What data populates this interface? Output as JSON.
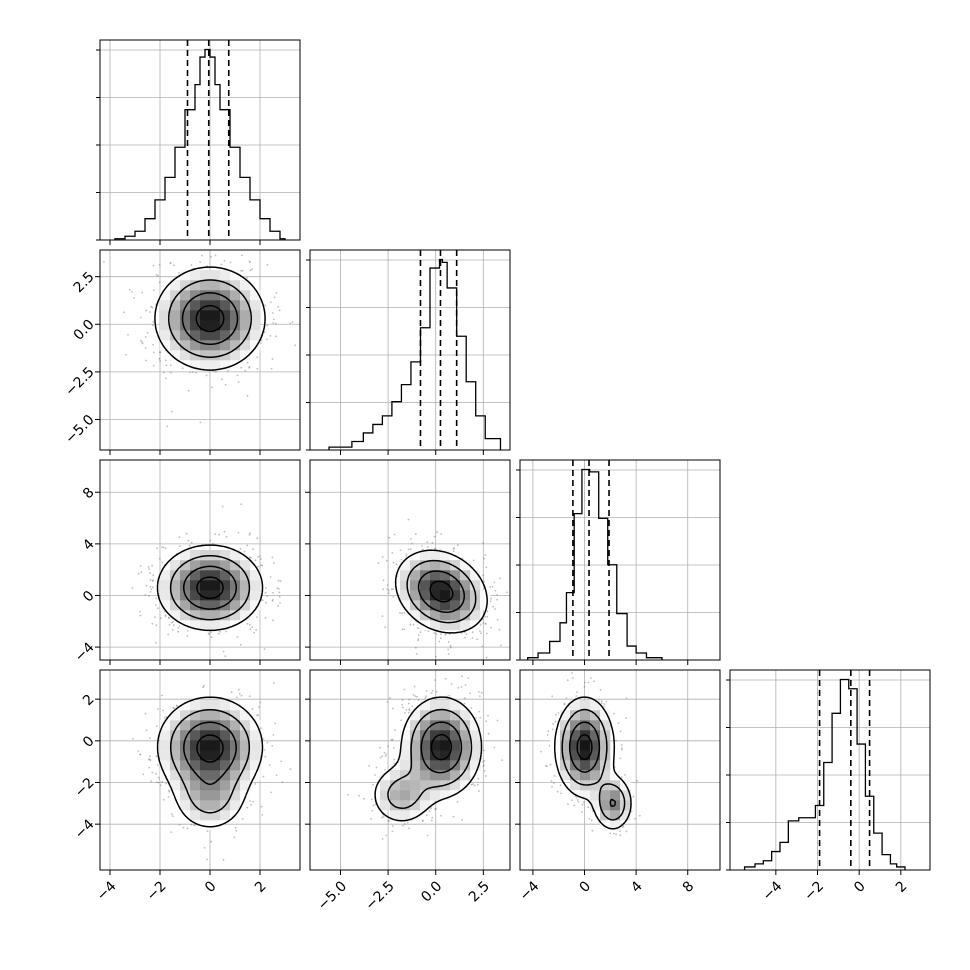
{
  "chart_data": {
    "type": "corner",
    "n_params": 4,
    "grid": true,
    "quantiles": [
      0.16,
      0.5,
      0.84
    ],
    "contour_levels_sigma": [
      0.5,
      1.0,
      1.5,
      2.0
    ],
    "params": [
      {
        "range": [
          -4.4,
          3.6
        ],
        "ticks": [
          -4,
          -2,
          0,
          2
        ],
        "tick_labels": [
          "−4",
          "−2",
          "0",
          "2"
        ],
        "quantile_values": [
          -0.9,
          -0.05,
          0.75
        ],
        "hist": {
          "edges": [
            -3.8,
            -3.4,
            -3.0,
            -2.6,
            -2.2,
            -1.8,
            -1.4,
            -1.0,
            -0.6,
            -0.4,
            -0.2,
            0.0,
            0.2,
            0.4,
            0.8,
            1.2,
            1.6,
            2.0,
            2.4,
            2.8,
            3.0
          ],
          "counts": [
            0.5,
            1.5,
            3.5,
            8.5,
            16,
            25,
            37,
            52,
            62,
            73,
            76,
            73,
            62,
            52,
            37,
            25,
            16,
            8.5,
            3.5,
            0.5
          ]
        }
      },
      {
        "range": [
          -6.6,
          3.9
        ],
        "ticks": [
          -5.0,
          -2.5,
          0.0,
          2.5
        ],
        "tick_labels": [
          "−5.0",
          "−2.5",
          "0.0",
          "2.5"
        ],
        "quantile_values": [
          -0.8,
          0.25,
          1.1
        ],
        "hist": {
          "edges": [
            -5.6,
            -4.4,
            -3.8,
            -3.3,
            -2.8,
            -2.3,
            -1.8,
            -1.3,
            -0.8,
            -0.3,
            0.2,
            0.35,
            0.6,
            1.1,
            1.6,
            2.1,
            2.6,
            3.4
          ],
          "counts": [
            1,
            3,
            6,
            9,
            12,
            17,
            23,
            31,
            43,
            64,
            67,
            66,
            57,
            40,
            24,
            12,
            4
          ]
        }
      },
      {
        "range": [
          -5,
          10.5
        ],
        "ticks": [
          -4,
          0,
          4,
          8
        ],
        "tick_labels": [
          "−4",
          "0",
          "4",
          "8"
        ],
        "quantile_values": [
          -0.9,
          0.35,
          1.9
        ],
        "hist": {
          "edges": [
            -4.4,
            -3.6,
            -2.7,
            -1.9,
            -1.4,
            -0.8,
            -0.2,
            0.4,
            1.1,
            1.8,
            2.5,
            3.3,
            4.0,
            4.8,
            6.0
          ],
          "counts": [
            1,
            3,
            8,
            16,
            29,
            63,
            82,
            81,
            61,
            41,
            20,
            6,
            3,
            1
          ]
        }
      },
      {
        "range": [
          -6.2,
          3.4
        ],
        "ticks": [
          -4,
          -2,
          0,
          2
        ],
        "tick_labels": [
          "−4",
          "−2",
          "0",
          "2"
        ],
        "quantile_values": [
          -1.9,
          -0.4,
          0.5
        ],
        "hist": {
          "edges": [
            -5.5,
            -5.0,
            -4.6,
            -4.2,
            -3.8,
            -3.4,
            -2.9,
            -2.5,
            -2.1,
            -1.7,
            -1.3,
            -0.9,
            -0.5,
            -0.1,
            0.3,
            0.7,
            1.1,
            1.5,
            1.8,
            2.2
          ],
          "counts": [
            1,
            2,
            3,
            6,
            9,
            16,
            17,
            17,
            21,
            35,
            51,
            62,
            59,
            41,
            24,
            12,
            5,
            2,
            1
          ]
        }
      }
    ],
    "pairs": [
      {
        "row": 1,
        "col": 0,
        "mean": [
          0,
          0.3
        ],
        "sd": [
          1.1,
          1.35
        ],
        "rho": 0.0,
        "n_points": 900,
        "second_component": null
      },
      {
        "row": 2,
        "col": 0,
        "mean": [
          0,
          0.6
        ],
        "sd": [
          1.05,
          1.65
        ],
        "rho": 0.0,
        "n_points": 900,
        "second_component": null
      },
      {
        "row": 2,
        "col": 1,
        "mean": [
          0.3,
          0.3
        ],
        "sd": [
          1.2,
          1.6
        ],
        "rho": -0.22,
        "n_points": 900,
        "second_component": null
      },
      {
        "row": 3,
        "col": 0,
        "mean": [
          0,
          -0.3
        ],
        "sd": [
          1.05,
          1.2
        ],
        "rho": 0.0,
        "n_points": 900,
        "second_component": {
          "mean": [
            0,
            -2.8
          ],
          "sd": [
            0.8,
            0.9
          ],
          "weight": 0.18
        }
      },
      {
        "row": 3,
        "col": 1,
        "mean": [
          0.3,
          -0.3
        ],
        "sd": [
          1.05,
          1.2
        ],
        "rho": 0.0,
        "n_points": 900,
        "second_component": {
          "mean": [
            -1.8,
            -2.6
          ],
          "sd": [
            0.9,
            0.8
          ],
          "weight": 0.2
        }
      },
      {
        "row": 3,
        "col": 2,
        "mean": [
          0,
          -0.3
        ],
        "sd": [
          1.15,
          1.2
        ],
        "rho": 0.0,
        "n_points": 900,
        "second_component": {
          "mean": [
            2.2,
            -3.0
          ],
          "sd": [
            0.8,
            0.7
          ],
          "weight": 0.2
        }
      }
    ],
    "colors": {
      "line": "#000000",
      "grid": "#b0b0b0",
      "points": "#6f6f6f",
      "background": "#ffffff"
    }
  }
}
